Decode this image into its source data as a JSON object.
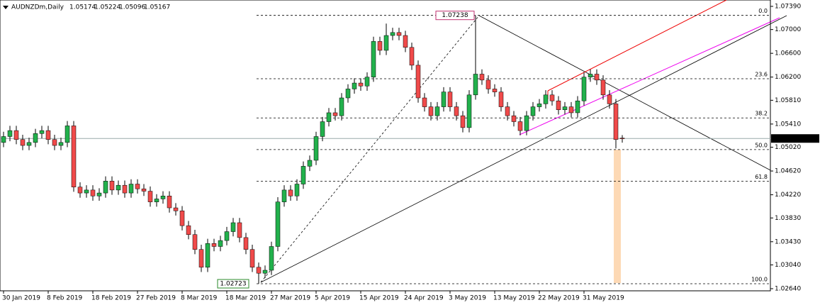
{
  "chart_data": {
    "type": "candlestick",
    "title": "AUDNZDm,Daily",
    "categories": [
      "30 Jan 2019",
      null,
      null,
      null,
      null,
      null,
      null,
      "8 Feb 2019",
      null,
      null,
      null,
      null,
      null,
      null,
      "18 Feb 2019",
      null,
      null,
      null,
      null,
      null,
      null,
      "27 Feb 2019",
      null,
      null,
      null,
      null,
      null,
      null,
      "8 Mar 2019",
      null,
      null,
      null,
      null,
      null,
      null,
      "18 Mar 2019",
      null,
      null,
      null,
      null,
      null,
      null,
      "27 Mar 2019",
      null,
      null,
      null,
      null,
      null,
      null,
      "5 Apr 2019",
      null,
      null,
      null,
      null,
      null,
      null,
      "15 Apr 2019",
      null,
      null,
      null,
      null,
      null,
      null,
      "24 Apr 2019",
      null,
      null,
      null,
      null,
      null,
      null,
      "3 May 2019",
      null,
      null,
      null,
      null,
      null,
      null,
      "13 May 2019",
      null,
      null,
      null,
      null,
      null,
      null,
      "22 May 2019",
      null,
      null,
      null,
      null,
      null,
      null,
      "31 May 2019",
      null,
      null,
      null,
      null,
      null,
      null
    ],
    "open": [
      1.051,
      1.052,
      1.053,
      1.0515,
      1.0505,
      1.051,
      1.0525,
      1.053,
      1.0515,
      1.0505,
      1.051,
      1.0538,
      1.0435,
      1.0425,
      1.043,
      1.042,
      1.0425,
      1.0445,
      1.043,
      1.0438,
      1.0425,
      1.044,
      1.0432,
      1.0428,
      1.041,
      1.0415,
      1.042,
      1.04,
      1.0395,
      1.037,
      1.0355,
      1.033,
      1.03,
      1.034,
      1.0335,
      1.0345,
      1.036,
      1.0375,
      1.035,
      1.033,
      1.03,
      1.029,
      1.0295,
      1.0335,
      1.041,
      1.043,
      1.042,
      1.044,
      1.047,
      1.048,
      1.052,
      1.0545,
      1.056,
      1.0555,
      1.0585,
      1.06,
      1.061,
      1.0605,
      1.062,
      1.068,
      1.0665,
      1.069,
      1.0695,
      1.069,
      1.067,
      1.064,
      1.0585,
      1.057,
      1.0555,
      1.057,
      1.0595,
      1.057,
      1.0555,
      1.0535,
      1.059,
      1.0625,
      1.0615,
      1.06,
      1.0595,
      1.057,
      1.0555,
      1.0545,
      1.053,
      1.0555,
      1.057,
      1.0575,
      1.059,
      1.058,
      1.0565,
      1.057,
      1.056,
      1.058,
      1.062,
      1.0625,
      1.0615,
      1.059,
      1.0575,
      1.05174
    ],
    "high": [
      1.0528,
      1.0538,
      1.0538,
      1.0523,
      1.0518,
      1.0533,
      1.0538,
      1.0538,
      1.0523,
      1.0518,
      1.0546,
      1.0546,
      1.0443,
      1.0438,
      1.0438,
      1.0433,
      1.0453,
      1.0453,
      1.0446,
      1.0446,
      1.0448,
      1.0448,
      1.044,
      1.0436,
      1.0423,
      1.0428,
      1.0428,
      1.0408,
      1.0403,
      1.0378,
      1.0363,
      1.0338,
      1.0348,
      1.0348,
      1.0353,
      1.0368,
      1.0383,
      1.0383,
      1.0358,
      1.0338,
      1.0308,
      1.0303,
      1.0343,
      1.0418,
      1.0438,
      1.0438,
      1.0448,
      1.0478,
      1.0488,
      1.0528,
      1.0553,
      1.0568,
      1.0568,
      1.0593,
      1.0608,
      1.0618,
      1.0618,
      1.0628,
      1.0688,
      1.0688,
      1.071,
      1.0703,
      1.0703,
      1.0698,
      1.0678,
      1.0648,
      1.0593,
      1.0578,
      1.0578,
      1.0603,
      1.0603,
      1.0578,
      1.0563,
      1.0598,
      1.07238,
      1.0633,
      1.0623,
      1.0608,
      1.0603,
      1.0578,
      1.0563,
      1.0553,
      1.0563,
      1.0578,
      1.0583,
      1.0598,
      1.0598,
      1.0588,
      1.0578,
      1.0578,
      1.0588,
      1.0628,
      1.0633,
      1.0633,
      1.0623,
      1.0598,
      1.0583,
      1.05224
    ],
    "low": [
      1.0502,
      1.0512,
      1.0507,
      1.0497,
      1.0497,
      1.0502,
      1.0517,
      1.0507,
      1.0497,
      1.0497,
      1.0502,
      1.0427,
      1.0417,
      1.0417,
      1.0412,
      1.0412,
      1.0417,
      1.0422,
      1.0422,
      1.0417,
      1.0417,
      1.0424,
      1.042,
      1.0402,
      1.0402,
      1.0407,
      1.0392,
      1.0387,
      1.0362,
      1.0347,
      1.0322,
      1.0292,
      1.0292,
      1.0327,
      1.0327,
      1.0337,
      1.0352,
      1.0342,
      1.0322,
      1.0292,
      1.02723,
      1.0282,
      1.0287,
      1.0327,
      1.0402,
      1.0412,
      1.0412,
      1.0432,
      1.0462,
      1.0472,
      1.0512,
      1.0537,
      1.0547,
      1.0547,
      1.0577,
      1.0592,
      1.0597,
      1.0597,
      1.0612,
      1.0657,
      1.0657,
      1.0682,
      1.0682,
      1.0662,
      1.0632,
      1.0577,
      1.0562,
      1.0547,
      1.0547,
      1.0562,
      1.0562,
      1.0547,
      1.0527,
      1.0527,
      1.0582,
      1.0607,
      1.0592,
      1.0587,
      1.0562,
      1.0547,
      1.0537,
      1.0522,
      1.0522,
      1.0547,
      1.0562,
      1.0567,
      1.0572,
      1.0557,
      1.0557,
      1.0552,
      1.0552,
      1.0572,
      1.0612,
      1.0607,
      1.0582,
      1.0567,
      1.05,
      1.05096
    ],
    "close": [
      1.052,
      1.053,
      1.0515,
      1.0505,
      1.051,
      1.0525,
      1.053,
      1.0515,
      1.0505,
      1.051,
      1.0538,
      1.0435,
      1.0425,
      1.043,
      1.042,
      1.0425,
      1.0445,
      1.043,
      1.0438,
      1.0425,
      1.044,
      1.0432,
      1.0428,
      1.041,
      1.0415,
      1.042,
      1.04,
      1.0395,
      1.037,
      1.0355,
      1.033,
      1.03,
      1.034,
      1.0335,
      1.0345,
      1.036,
      1.0375,
      1.035,
      1.033,
      1.03,
      1.029,
      1.0295,
      1.0335,
      1.041,
      1.043,
      1.042,
      1.044,
      1.047,
      1.048,
      1.052,
      1.0545,
      1.056,
      1.0555,
      1.0585,
      1.06,
      1.061,
      1.0605,
      1.062,
      1.068,
      1.0665,
      1.069,
      1.0695,
      1.069,
      1.067,
      1.064,
      1.0585,
      1.057,
      1.0555,
      1.057,
      1.0595,
      1.057,
      1.0555,
      1.0535,
      1.059,
      1.0625,
      1.0615,
      1.06,
      1.0595,
      1.057,
      1.0555,
      1.0545,
      1.053,
      1.0555,
      1.057,
      1.0575,
      1.059,
      1.058,
      1.0565,
      1.057,
      1.056,
      1.058,
      1.062,
      1.0625,
      1.0615,
      1.059,
      1.0575,
      1.0515,
      1.05167
    ],
    "up_color": "#22b14c",
    "down_color": "#f04a4a",
    "ylim": [
      1.02604,
      1.07497
    ],
    "yticks": [
      {
        "value": 1.0739,
        "label": "1.07390"
      },
      {
        "value": 1.07,
        "label": "1.07000"
      },
      {
        "value": 1.066,
        "label": "1.06600"
      },
      {
        "value": 1.062,
        "label": "1.06200"
      },
      {
        "value": 1.0581,
        "label": "1.05810"
      },
      {
        "value": 1.0541,
        "label": "1.05410"
      },
      {
        "value": 1.0502,
        "label": "1.05020"
      },
      {
        "value": 1.0462,
        "label": "1.04620"
      },
      {
        "value": 1.0422,
        "label": "1.04220"
      },
      {
        "value": 1.0383,
        "label": "1.03830"
      },
      {
        "value": 1.0343,
        "label": "1.03430"
      },
      {
        "value": 1.0304,
        "label": "1.03040"
      },
      {
        "value": 1.0264,
        "label": "1.02640"
      }
    ],
    "fibonacci": {
      "high": 1.07238,
      "low": 1.02723,
      "levels": [
        {
          "value": 0,
          "label": "0.0"
        },
        23.6,
        38.2,
        {
          "value": 50,
          "label": "50.0"
        },
        61.8,
        {
          "value": 100,
          "label": "100.0"
        }
      ]
    }
  }
}
